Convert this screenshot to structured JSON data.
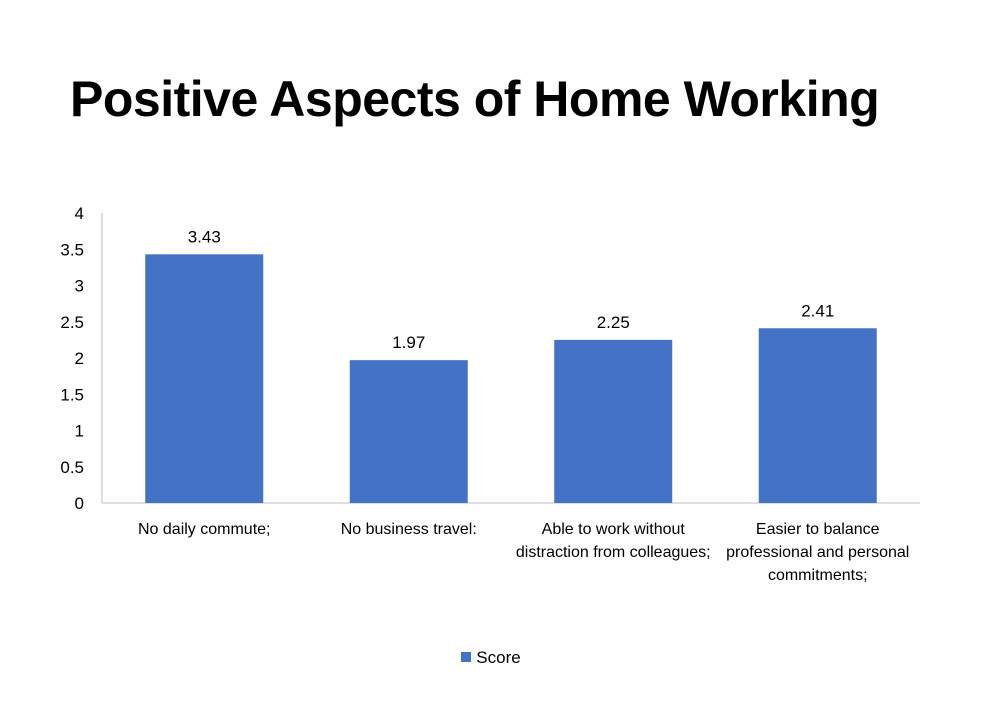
{
  "title": "Positive Aspects of Home Working",
  "colors": {
    "bar": "#4472C4",
    "axis": "#BFBFBF"
  },
  "chart_data": {
    "type": "bar",
    "title": "Positive Aspects of Home Working",
    "categories": [
      "No daily commute;",
      "No business travel:",
      "Able to work without distraction from colleagues;",
      "Easier to balance professional and personal commitments;"
    ],
    "series": [
      {
        "name": "Score",
        "values": [
          3.43,
          1.97,
          2.25,
          2.41
        ]
      }
    ],
    "data_labels": [
      "3.43",
      "1.97",
      "2.25",
      "2.41"
    ],
    "y_ticks": [
      "0",
      "0.5",
      "1",
      "1.5",
      "2",
      "2.5",
      "3",
      "3.5",
      "4"
    ],
    "ylim": [
      0,
      4
    ],
    "grid": false,
    "legend": "bottom"
  }
}
